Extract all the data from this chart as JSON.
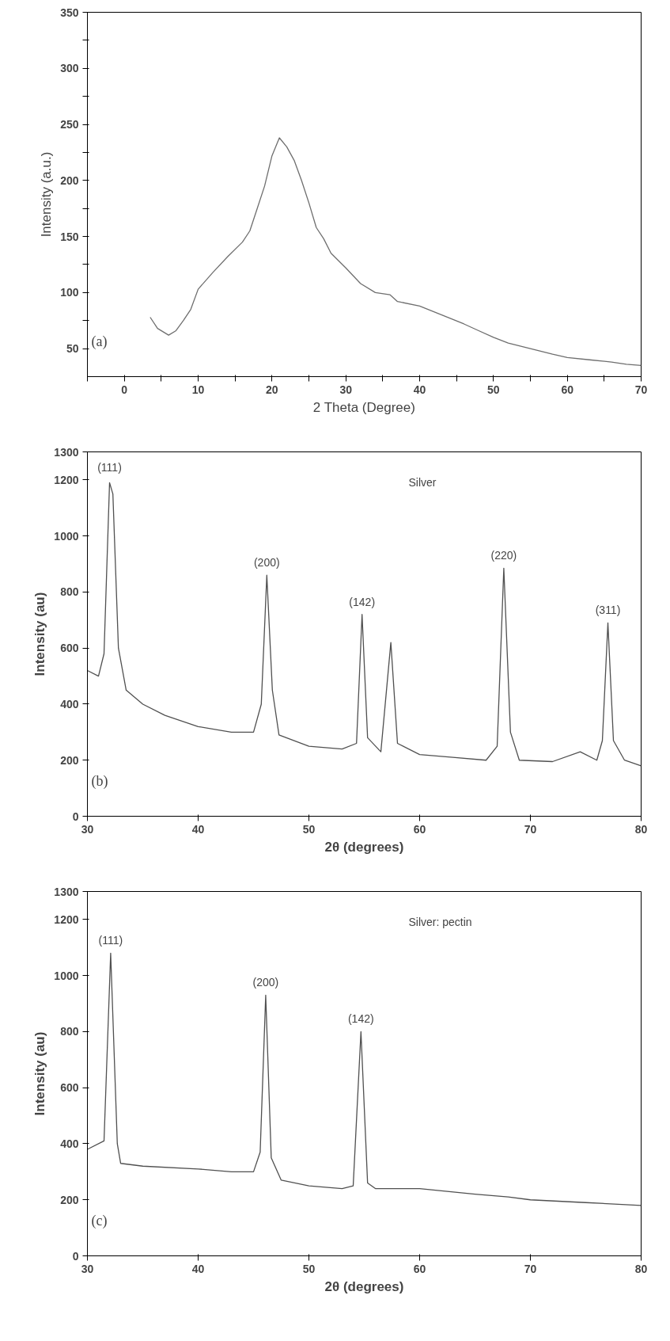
{
  "chart_data": [
    {
      "type": "line",
      "xlabel": "2 Theta (Degree)",
      "ylabel": "Intensity (a.u.)",
      "annotations": [
        "(a)"
      ],
      "grid": false,
      "xlim": [
        -5,
        70
      ],
      "ylim": [
        25,
        350
      ],
      "xticks": [
        {
          "value": -5,
          "label": null
        },
        0,
        {
          "value": 5,
          "label": null
        },
        10,
        {
          "value": 15,
          "label": null
        },
        20,
        {
          "value": 25,
          "label": null
        },
        30,
        {
          "value": 35,
          "label": null
        },
        40,
        {
          "value": 45,
          "label": null
        },
        50,
        {
          "value": 55,
          "label": null
        },
        60,
        {
          "value": 65,
          "label": null
        },
        70
      ],
      "yticks": [
        50,
        {
          "value": 75,
          "label": null
        },
        100,
        {
          "value": 125,
          "label": null
        },
        150,
        {
          "value": 175,
          "label": null
        },
        200,
        {
          "value": 225,
          "label": null
        },
        250,
        {
          "value": 275,
          "label": null
        },
        300,
        {
          "value": 325,
          "label": null
        },
        350
      ],
      "series": [
        {
          "color": "#6e6e6e",
          "x": [
            3.5,
            4.5,
            6,
            7,
            8,
            9,
            10,
            12,
            14,
            16,
            17,
            18,
            19,
            20,
            21,
            22,
            23,
            24,
            25,
            26,
            27,
            28,
            30,
            32,
            34,
            36,
            37,
            40,
            43,
            46,
            48,
            50,
            52,
            55,
            58,
            60,
            63,
            66,
            68,
            70
          ],
          "values": [
            78,
            68,
            62,
            66,
            75,
            85,
            103,
            118,
            132,
            145,
            155,
            175,
            195,
            222,
            238,
            230,
            218,
            200,
            180,
            158,
            148,
            135,
            122,
            108,
            100,
            98,
            92,
            88,
            80,
            72,
            66,
            60,
            55,
            50,
            45,
            42,
            40,
            38,
            36,
            35
          ]
        }
      ]
    },
    {
      "type": "line",
      "xlabel": "2θ (degrees)",
      "ylabel": "Intensity (au)",
      "annotations": [
        "(b)",
        "Silver",
        {
          "text": "(111)",
          "x": 32,
          "y": 1200
        },
        {
          "text": "(200)",
          "x": 46.2,
          "y": 860
        },
        {
          "text": "(142)",
          "x": 54.8,
          "y": 720
        },
        {
          "text": "(220)",
          "x": 67.6,
          "y": 885
        },
        {
          "text": "(311)",
          "x": 77,
          "y": 690
        }
      ],
      "grid": false,
      "xlim": [
        30,
        80
      ],
      "ylim": [
        0,
        1300
      ],
      "xticks": [
        30,
        40,
        50,
        60,
        70,
        80
      ],
      "yticks": [
        0,
        200,
        400,
        600,
        800,
        1000,
        1200,
        1300
      ],
      "series": [
        {
          "color": "#505050",
          "x": [
            30,
            31,
            31.5,
            32,
            32.3,
            32.8,
            33.5,
            35,
            37,
            40,
            43,
            45,
            45.7,
            46.2,
            46.7,
            47.3,
            50,
            53,
            54.3,
            54.8,
            55.3,
            56.5,
            57.4,
            58,
            60,
            63,
            66,
            67,
            67.6,
            68.2,
            69,
            72,
            74.5,
            76,
            76.5,
            77,
            77.5,
            78.5,
            80
          ],
          "values": [
            520,
            500,
            580,
            1190,
            1150,
            600,
            450,
            400,
            360,
            320,
            300,
            300,
            400,
            860,
            450,
            290,
            250,
            240,
            260,
            720,
            280,
            230,
            620,
            260,
            220,
            210,
            200,
            250,
            885,
            300,
            200,
            195,
            230,
            200,
            270,
            690,
            270,
            200,
            180
          ]
        }
      ]
    },
    {
      "type": "line",
      "xlabel": "2θ (degrees)",
      "ylabel": "Intensity (au)",
      "annotations": [
        "(c)",
        "Silver: pectin",
        {
          "text": "(111)",
          "x": 32.1,
          "y": 1080
        },
        {
          "text": "(200)",
          "x": 46.1,
          "y": 930
        },
        {
          "text": "(142)",
          "x": 54.7,
          "y": 800
        }
      ],
      "grid": false,
      "xlim": [
        30,
        80
      ],
      "ylim": [
        0,
        1300
      ],
      "xticks": [
        30,
        40,
        50,
        60,
        70,
        80
      ],
      "yticks": [
        0,
        200,
        400,
        600,
        800,
        1000,
        1200,
        1300
      ],
      "series": [
        {
          "color": "#505050",
          "x": [
            30,
            31.5,
            32.1,
            32.7,
            33,
            35,
            40,
            43,
            45,
            45.6,
            46.1,
            46.6,
            47.5,
            50,
            53,
            54,
            54.7,
            55.3,
            56,
            60,
            65,
            68,
            70,
            75,
            80
          ],
          "values": [
            380,
            410,
            1080,
            400,
            330,
            320,
            310,
            300,
            300,
            370,
            930,
            350,
            270,
            250,
            240,
            250,
            800,
            260,
            240,
            240,
            220,
            210,
            200,
            190,
            180
          ]
        }
      ]
    }
  ]
}
